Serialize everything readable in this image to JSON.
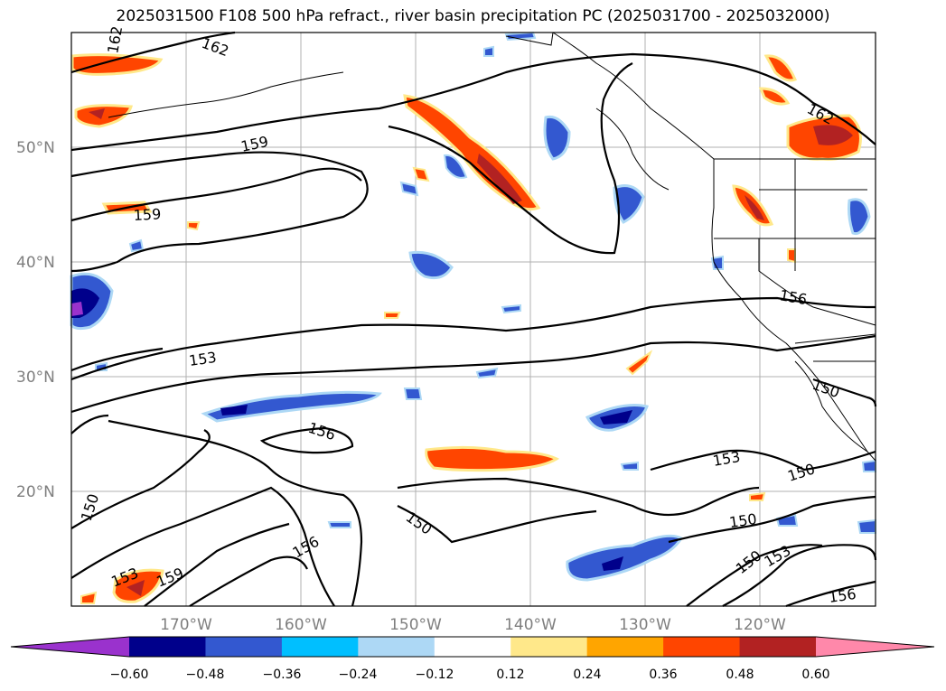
{
  "title": "2025031500 F108 500 hPa refract., river basin precipitation PC (2025031700 - 2025032000)",
  "lat_labels": [
    "50°N",
    "40°N",
    "30°N",
    "20°N"
  ],
  "lon_labels": [
    "170°W",
    "160°W",
    "150°W",
    "140°W",
    "130°W",
    "120°W"
  ],
  "contour_labels": [
    "162",
    "162",
    "159",
    "159",
    "153",
    "156",
    "150",
    "150",
    "156",
    "150",
    "153",
    "150",
    "150",
    "153",
    "156",
    "153",
    "159",
    "162",
    "156"
  ],
  "colorbar": {
    "tick_labels": [
      "−0.60",
      "−0.48",
      "−0.36",
      "−0.24",
      "−0.12",
      "0.12",
      "0.24",
      "0.36",
      "0.48",
      "0.60"
    ],
    "colors": [
      "#9a32cd",
      "#00008b",
      "#3358d0",
      "#00bfff",
      "#add8f5",
      "#ffffff",
      "#ffe88a",
      "#ffa500",
      "#ff4500",
      "#b22222",
      "#ff88aa"
    ]
  }
}
